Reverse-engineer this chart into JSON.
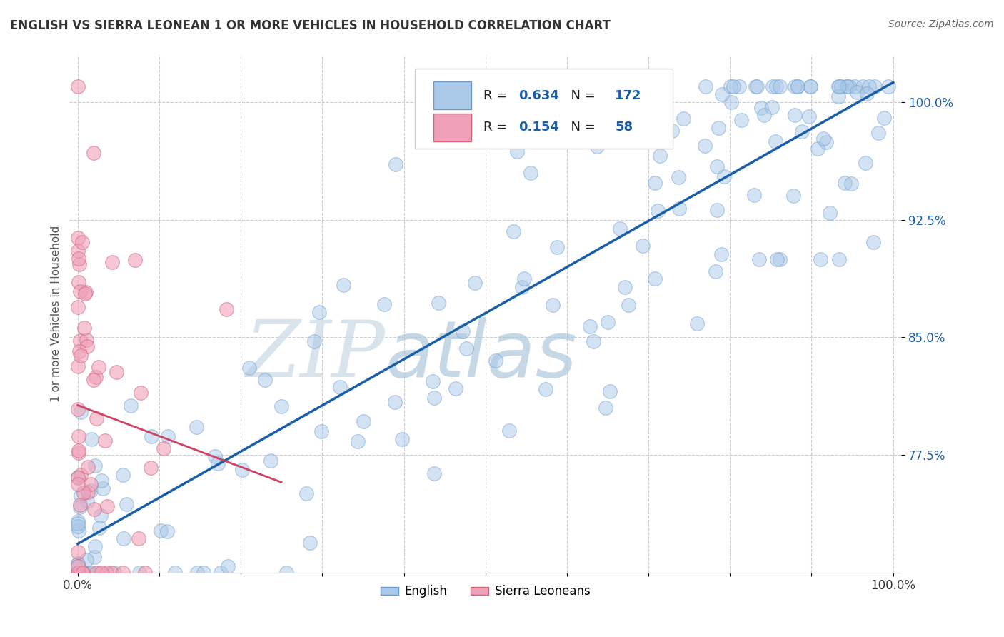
{
  "title": "ENGLISH VS SIERRA LEONEAN 1 OR MORE VEHICLES IN HOUSEHOLD CORRELATION CHART",
  "source_text": "Source: ZipAtlas.com",
  "ylabel": "1 or more Vehicles in Household",
  "xlim": [
    -1,
    101
  ],
  "ylim": [
    70,
    103
  ],
  "yticks": [
    77.5,
    85.0,
    92.5,
    100.0
  ],
  "xticks": [
    0,
    10,
    20,
    30,
    40,
    50,
    60,
    70,
    80,
    90,
    100
  ],
  "xtick_labels": [
    "0.0%",
    "",
    "",
    "",
    "",
    "",
    "",
    "",
    "",
    "",
    "100.0%"
  ],
  "ytick_labels": [
    "77.5%",
    "85.0%",
    "92.5%",
    "100.0%"
  ],
  "english_color": "#aac8e8",
  "english_edge": "#6699cc",
  "sierra_color": "#f0a0b8",
  "sierra_edge": "#cc6677",
  "trend_english_color": "#1a5fa8",
  "trend_sierra_color": "#cc4466",
  "english_R": 0.634,
  "english_N": 172,
  "sierra_R": 0.154,
  "sierra_N": 58,
  "watermark_ZIP": "ZIP",
  "watermark_atlas": "atlas",
  "legend_english": "English",
  "legend_sierra": "Sierra Leoneans",
  "title_color": "#333333",
  "title_fontsize": 12,
  "ytick_color": "#1a5fa8",
  "source_color": "#666666",
  "grid_color": "#cccccc"
}
